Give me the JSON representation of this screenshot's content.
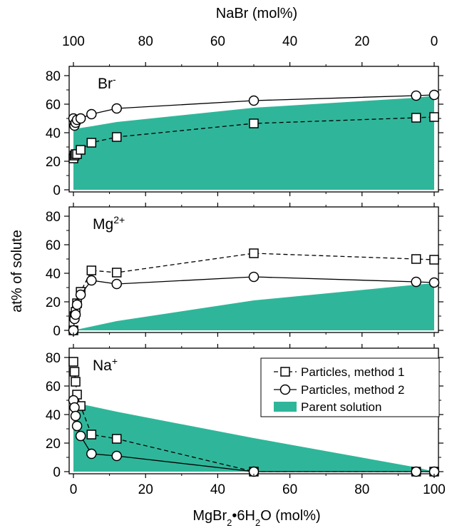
{
  "figure": {
    "top_axis_label": "NaBr (mol%)",
    "bottom_axis_label": "MgBr₂•6H₂O (mol%)",
    "y_axis_label": "at% of solute",
    "legend": {
      "method1": "Particles, method 1",
      "method2": "Particles, method 2",
      "parent": "Parent solution"
    },
    "colors": {
      "parent_fill": "#2fb69a",
      "line": "#000000",
      "marker_fill": "#ffffff"
    }
  },
  "chart_data": [
    {
      "type": "line",
      "panel": "Br",
      "label": "Br⁻",
      "x": [
        0,
        0.5,
        1,
        2,
        5,
        12,
        50,
        95,
        100
      ],
      "xlim": [
        0,
        100
      ],
      "top_axis": {
        "label": "NaBr (mol%)",
        "ticks": [
          100,
          80,
          60,
          40,
          20,
          0
        ]
      },
      "ylim": [
        0,
        85
      ],
      "yticks": [
        0,
        20,
        40,
        60,
        80
      ],
      "series": [
        {
          "name": "Particles, method 1",
          "x": [
            0,
            0.3,
            0.6,
            1,
            2,
            5,
            12,
            50,
            95,
            100
          ],
          "values": [
            22,
            24,
            25,
            25,
            28,
            33,
            37,
            46.5,
            50.5,
            51
          ]
        },
        {
          "name": "Particles, method 2",
          "x": [
            0,
            0.3,
            0.6,
            1,
            2,
            5,
            12,
            50,
            95,
            100
          ],
          "values": [
            50,
            45,
            47,
            49,
            50,
            53,
            57,
            62.5,
            66,
            66.5
          ]
        },
        {
          "name": "Parent solution",
          "area": true,
          "x": [
            0,
            5,
            12,
            50,
            95,
            100
          ],
          "values": [
            42.5,
            44.5,
            47.5,
            57.5,
            64.5,
            66
          ]
        }
      ]
    },
    {
      "type": "line",
      "panel": "Mg",
      "label": "Mg2+",
      "label_superscript": "2+",
      "label_base": "Mg",
      "xlim": [
        0,
        100
      ],
      "ylim": [
        0,
        85
      ],
      "yticks": [
        0,
        20,
        40,
        60,
        80
      ],
      "series": [
        {
          "name": "Particles, method 1",
          "x": [
            0,
            0.3,
            0.6,
            1,
            2,
            5,
            12,
            50,
            95,
            100
          ],
          "values": [
            0,
            10,
            13,
            19,
            27,
            42,
            40.5,
            54,
            50,
            49.5
          ]
        },
        {
          "name": "Particles, method 2",
          "x": [
            0,
            0.3,
            0.6,
            1,
            2,
            5,
            12,
            50,
            95,
            100
          ],
          "values": [
            0,
            8,
            11,
            18,
            25,
            35,
            32.5,
            37.5,
            34,
            33.5
          ]
        },
        {
          "name": "Parent solution",
          "area": true,
          "x": [
            0,
            12,
            50,
            95,
            100
          ],
          "values": [
            0,
            6.5,
            21,
            32,
            33
          ]
        }
      ]
    },
    {
      "type": "line",
      "panel": "Na",
      "label": "Na+",
      "label_superscript": "+",
      "label_base": "Na",
      "xlim": [
        0,
        100
      ],
      "xticks": [
        0,
        20,
        40,
        60,
        80,
        100
      ],
      "ylim": [
        0,
        85
      ],
      "yticks": [
        0,
        20,
        40,
        60,
        80
      ],
      "series": [
        {
          "name": "Particles, method 1",
          "x": [
            0,
            0.3,
            0.6,
            1,
            2,
            5,
            12,
            50,
            95,
            100
          ],
          "values": [
            77,
            70,
            63,
            54,
            46,
            26,
            23,
            0,
            0,
            0
          ]
        },
        {
          "name": "Particles, method 2",
          "x": [
            0,
            0.3,
            0.6,
            1,
            2,
            5,
            12,
            50,
            95,
            100
          ],
          "values": [
            50,
            45,
            39,
            32,
            25,
            12.5,
            11,
            0,
            0,
            0
          ]
        },
        {
          "name": "Parent solution",
          "area": true,
          "x": [
            0,
            12,
            50,
            95,
            100
          ],
          "values": [
            48.5,
            42,
            23.5,
            3,
            0
          ]
        }
      ]
    }
  ]
}
